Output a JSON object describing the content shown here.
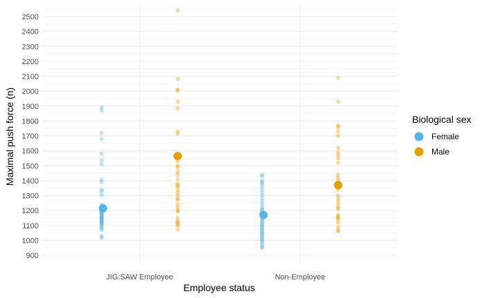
{
  "chart_data": {
    "type": "scatter",
    "xlabel": "Employee status",
    "ylabel": "Maximal push force (n)",
    "categories": [
      "JIG:SAW Employee",
      "Non-Employee"
    ],
    "ylim": [
      850,
      2550
    ],
    "yticks": [
      900,
      1000,
      1100,
      1200,
      1300,
      1400,
      1500,
      1600,
      1700,
      1800,
      1900,
      2000,
      2100,
      2200,
      2300,
      2400,
      2500
    ],
    "grid": true,
    "legend": {
      "title": "Biological sex",
      "position": "right",
      "entries": [
        "Female",
        "Male"
      ]
    },
    "series": [
      {
        "name": "Female",
        "color": "#56B4E9",
        "means": [
          1215,
          1170
        ],
        "points": [
          [
            1890,
            1870,
            1720,
            1680,
            1580,
            1535,
            1510,
            1405,
            1390,
            1340,
            1330,
            1305,
            1240,
            1215,
            1200,
            1195,
            1185,
            1180,
            1175,
            1170,
            1165,
            1160,
            1155,
            1150,
            1145,
            1140,
            1135,
            1130,
            1125,
            1120,
            1115,
            1110,
            1100,
            1090,
            1080,
            1070,
            1030,
            1015
          ],
          [
            1440,
            1430,
            1400,
            1390,
            1380,
            1360,
            1340,
            1320,
            1300,
            1280,
            1260,
            1240,
            1220,
            1210,
            1200,
            1190,
            1180,
            1170,
            1160,
            1150,
            1140,
            1130,
            1120,
            1110,
            1100,
            1090,
            1080,
            1070,
            1060,
            1050,
            1040,
            1030,
            1020,
            1010,
            1000,
            990,
            975,
            960,
            950
          ]
        ]
      },
      {
        "name": "Male",
        "color": "#E69F00",
        "means": [
          1565,
          1370
        ],
        "points": [
          [
            2540,
            2080,
            2010,
            2005,
            1930,
            1885,
            1730,
            1715,
            1570,
            1560,
            1530,
            1500,
            1490,
            1460,
            1440,
            1410,
            1380,
            1370,
            1360,
            1340,
            1320,
            1300,
            1280,
            1270,
            1240,
            1220,
            1200,
            1195,
            1150,
            1130,
            1120,
            1110,
            1100,
            1075
          ],
          [
            2090,
            1930,
            1770,
            1760,
            1730,
            1700,
            1620,
            1590,
            1570,
            1550,
            1520,
            1440,
            1420,
            1400,
            1380,
            1360,
            1340,
            1300,
            1280,
            1260,
            1240,
            1220,
            1210,
            1170,
            1160,
            1150,
            1140,
            1120,
            1090,
            1070,
            1060
          ]
        ]
      }
    ]
  }
}
